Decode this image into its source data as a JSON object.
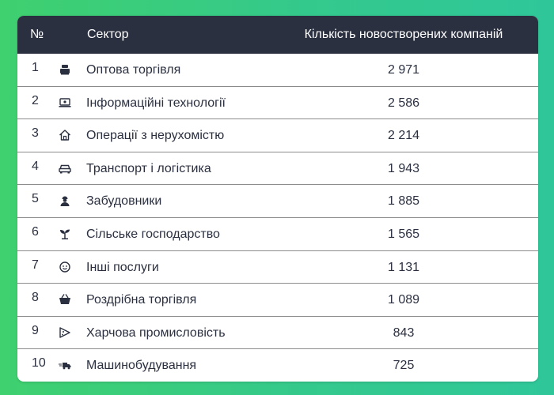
{
  "table": {
    "headers": {
      "num": "№",
      "sector": "Сектор",
      "count": "Кількість новостворених компаній"
    },
    "rows": [
      {
        "num": "1",
        "icon": "wholesale-icon",
        "sector": "Оптова торгівля",
        "count": "2 971"
      },
      {
        "num": "2",
        "icon": "laptop-icon",
        "sector": "Інформаційні технології",
        "count": "2 586"
      },
      {
        "num": "3",
        "icon": "house-icon",
        "sector": "Операції з нерухомістю",
        "count": "2 214"
      },
      {
        "num": "4",
        "icon": "car-icon",
        "sector": "Транспорт і логістика",
        "count": "1 943"
      },
      {
        "num": "5",
        "icon": "builder-icon",
        "sector": "Забудовники",
        "count": "1 885"
      },
      {
        "num": "6",
        "icon": "sprout-icon",
        "sector": "Сільське господарство",
        "count": "1 565"
      },
      {
        "num": "7",
        "icon": "smile-icon",
        "sector": "Інші послуги",
        "count": "1 131"
      },
      {
        "num": "8",
        "icon": "basket-icon",
        "sector": "Роздрібна торгівля",
        "count": "1 089"
      },
      {
        "num": "9",
        "icon": "pizza-icon",
        "sector": "Харчова промисловість",
        "count": "843"
      },
      {
        "num": "10",
        "icon": "truck-icon",
        "sector": "Машинобудування",
        "count": "725"
      }
    ]
  }
}
